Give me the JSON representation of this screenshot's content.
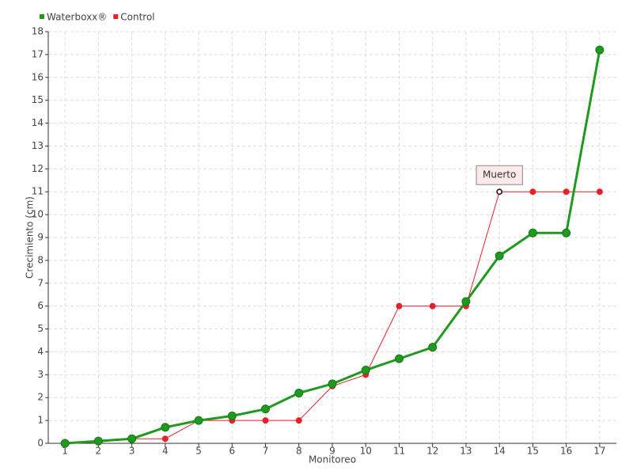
{
  "chart_data": {
    "type": "line",
    "x_label": "Monitoreo",
    "y_label": "Crecimiento (cm)",
    "categories": [
      "1",
      "2",
      "3",
      "4",
      "5",
      "6",
      "7",
      "8",
      "9",
      "10",
      "11",
      "12",
      "13",
      "14",
      "15",
      "16",
      "17"
    ],
    "series": [
      {
        "name": "Waterboxx®",
        "color": "#1f9a1f",
        "values": [
          0,
          0.1,
          0.2,
          0.7,
          1.0,
          1.2,
          1.5,
          2.2,
          2.6,
          3.2,
          3.7,
          4.2,
          6.2,
          8.2,
          9.2,
          9.2,
          17.2
        ]
      },
      {
        "name": "Control",
        "color": "#e8202a",
        "values": [
          0,
          0.05,
          0.2,
          0.2,
          1,
          1,
          1,
          1,
          2.5,
          3,
          6,
          6,
          6,
          11,
          11,
          11,
          11
        ]
      }
    ],
    "annotation": {
      "text": "Muerto",
      "series": "Control",
      "category": "14"
    },
    "ylim": [
      0,
      18
    ],
    "yticks": [
      0,
      1,
      2,
      3,
      4,
      5,
      6,
      7,
      8,
      9,
      10,
      11,
      12,
      13,
      14,
      15,
      16,
      17,
      18
    ],
    "grid": true,
    "legend": "top-left"
  }
}
